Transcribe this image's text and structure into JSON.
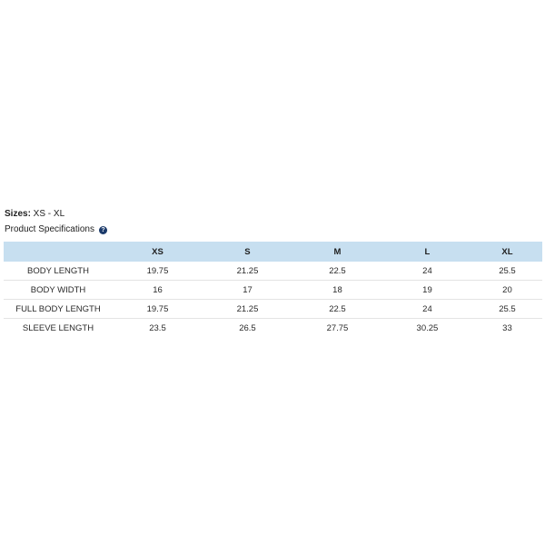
{
  "sizes": {
    "label": "Sizes:",
    "value": " XS - XL"
  },
  "spec_heading": {
    "text": "Product Specifications",
    "help_icon": "question-icon",
    "help_glyph": "?"
  },
  "colors": {
    "header_bg": "#c7dff0",
    "icon_bg": "#1b3a6b",
    "row_border": "#e3e3e3"
  },
  "table": {
    "columns": [
      "",
      "XS",
      "S",
      "M",
      "L",
      "XL"
    ],
    "rows": [
      {
        "label": "BODY LENGTH",
        "values": [
          "19.75",
          "21.25",
          "22.5",
          "24",
          "25.5"
        ]
      },
      {
        "label": "BODY WIDTH",
        "values": [
          "16",
          "17",
          "18",
          "19",
          "20"
        ]
      },
      {
        "label": "FULL BODY LENGTH",
        "values": [
          "19.75",
          "21.25",
          "22.5",
          "24",
          "25.5"
        ]
      },
      {
        "label": "SLEEVE LENGTH",
        "values": [
          "23.5",
          "26.5",
          "27.75",
          "30.25",
          "33"
        ]
      }
    ]
  }
}
